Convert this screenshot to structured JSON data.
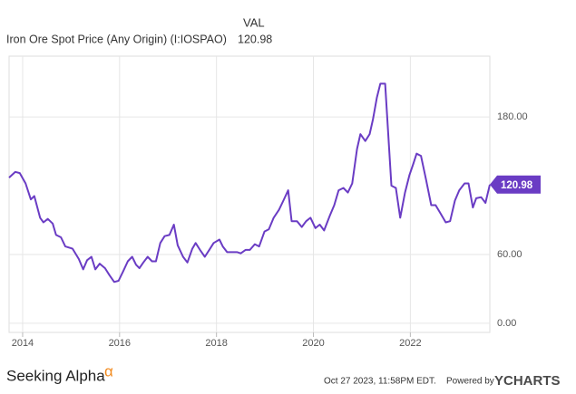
{
  "chart_data": {
    "type": "line",
    "header": "VAL",
    "series": [
      {
        "name": "Iron Ore Spot Price (Any Origin) (I:IOSPAO)",
        "color": "#6a3cc4",
        "x": [
          2013.72,
          2013.85,
          2013.94,
          2014.06,
          2014.17,
          2014.24,
          2014.36,
          2014.43,
          2014.52,
          2014.62,
          2014.69,
          2014.79,
          2014.88,
          2015.03,
          2015.16,
          2015.25,
          2015.33,
          2015.42,
          2015.5,
          2015.59,
          2015.7,
          2015.79,
          2015.89,
          2015.98,
          2016.07,
          2016.17,
          2016.26,
          2016.34,
          2016.41,
          2016.49,
          2016.58,
          2016.67,
          2016.75,
          2016.84,
          2016.93,
          2017.03,
          2017.12,
          2017.2,
          2017.31,
          2017.4,
          2017.5,
          2017.57,
          2017.66,
          2017.76,
          2017.85,
          2017.94,
          2018.06,
          2018.13,
          2018.22,
          2018.32,
          2018.43,
          2018.5,
          2018.6,
          2018.69,
          2018.79,
          2018.88,
          2018.99,
          2019.08,
          2019.18,
          2019.29,
          2019.38,
          2019.48,
          2019.55,
          2019.66,
          2019.76,
          2019.85,
          2019.94,
          2020.04,
          2020.13,
          2020.22,
          2020.34,
          2020.43,
          2020.52,
          2020.62,
          2020.71,
          2020.8,
          2020.9,
          2020.97,
          2021.07,
          2021.16,
          2021.23,
          2021.31,
          2021.38,
          2021.48,
          2021.61,
          2021.7,
          2021.79,
          2021.89,
          2021.98,
          2022.06,
          2022.13,
          2022.22,
          2022.32,
          2022.43,
          2022.52,
          2022.62,
          2022.73,
          2022.82,
          2022.92,
          2023.01,
          2023.12,
          2023.2,
          2023.29,
          2023.36,
          2023.46,
          2023.55,
          2023.64
        ],
        "values": [
          127,
          132,
          131,
          122,
          108,
          111,
          92,
          88,
          91,
          87,
          77,
          75,
          67,
          65,
          56,
          47,
          55,
          58,
          47,
          52,
          48,
          42,
          36,
          37,
          45,
          54,
          58,
          51,
          48,
          53,
          58,
          54,
          54,
          70,
          76,
          77,
          86,
          68,
          58,
          53,
          65,
          70,
          64,
          58,
          64,
          70,
          73,
          67,
          62,
          62,
          62,
          61,
          64,
          64,
          69,
          67,
          80,
          82,
          92,
          99,
          107,
          116,
          89,
          89,
          84,
          89,
          92,
          83,
          86,
          81,
          94,
          103,
          116,
          118,
          114,
          122,
          152,
          165,
          159,
          165,
          178,
          197,
          209,
          209,
          120,
          118,
          92,
          114,
          129,
          139,
          148,
          146,
          126,
          103,
          103,
          96,
          88,
          89,
          107,
          116,
          122,
          122,
          101,
          109,
          110,
          105,
          120.98
        ]
      }
    ],
    "xlim": [
      2013.72,
      2023.64
    ],
    "ylim": [
      -8,
      233
    ],
    "xticks": [
      2014,
      2016,
      2018,
      2020,
      2022
    ],
    "yticks": [
      {
        "value": 0,
        "label": "0.00"
      },
      {
        "value": 60,
        "label": "60.00"
      },
      {
        "value": 180,
        "label": "180.00"
      }
    ],
    "grid": true
  },
  "footer": {
    "brand": "Seeking Alpha",
    "brand_mark": "α",
    "timestamp": "Oct 27 2023, 11:58PM EDT.",
    "powered": "Powered by",
    "provider": "YCHARTS"
  }
}
